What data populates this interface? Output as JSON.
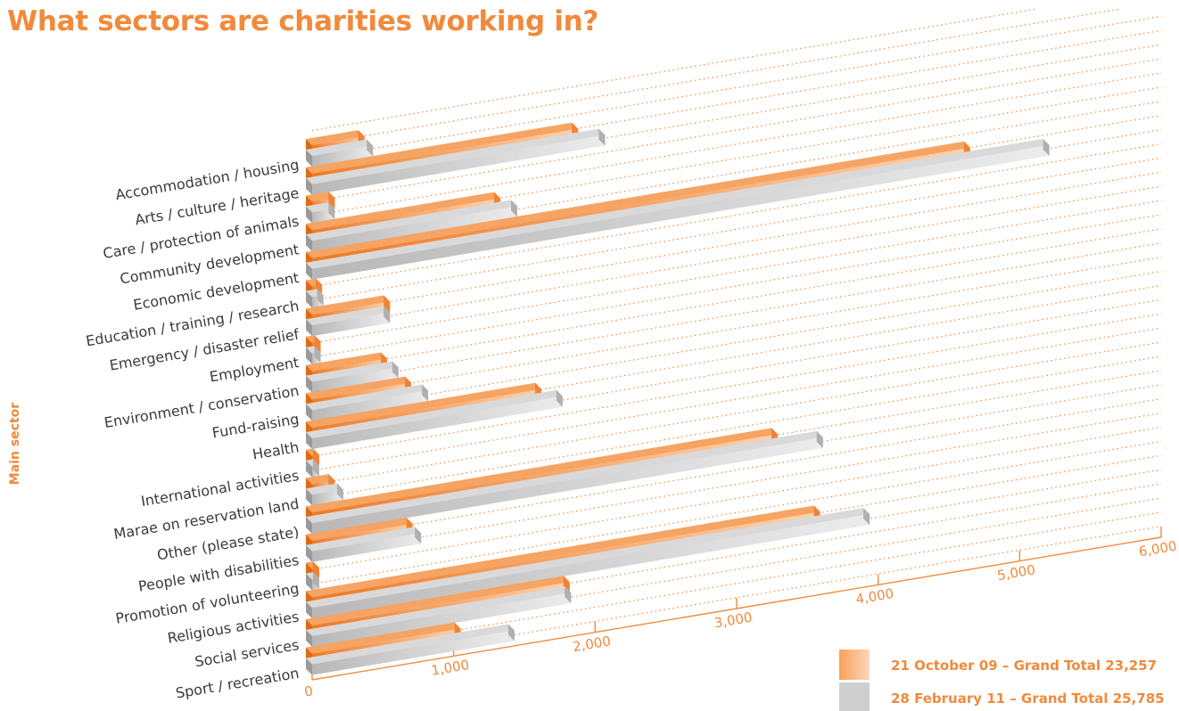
{
  "chart_data": {
    "type": "bar",
    "orientation": "horizontal",
    "title": "What sectors are charities working in?",
    "ylabel": "Main sector",
    "xlabel": "",
    "xlim": [
      0,
      6000
    ],
    "x_ticks": [
      "0",
      "1,000",
      "2,000",
      "3,000",
      "4,000",
      "5,000",
      "6,000"
    ],
    "legend_position": "bottom-right",
    "grid": "dotted",
    "categories": [
      "Accommodation / housing",
      "Arts / culture / heritage",
      "Care / protection of animals",
      "Community development",
      "Economic development",
      "Education / training / research",
      "Emergency / disaster relief",
      "Employment",
      "Environment / conservation",
      "Fund-raising",
      "Health",
      "International activities",
      "Marae on reservation land",
      "Other (please state)",
      "People with disabilities",
      "Promotion of volunteering",
      "Religious activities",
      "Social services",
      "Sport / recreation"
    ],
    "series": [
      {
        "name": "21 October 09 – Grand Total 23,257",
        "color": "#f48a36",
        "values": [
          370,
          1880,
          160,
          1330,
          4650,
          70,
          550,
          60,
          530,
          700,
          1620,
          50,
          160,
          3290,
          710,
          50,
          3590,
          1820,
          1050
        ]
      },
      {
        "name": "28 February 11 – Grand Total 25,785",
        "color": "#c8c8c8",
        "values": [
          430,
          2070,
          160,
          1450,
          5210,
          80,
          550,
          60,
          610,
          820,
          1770,
          50,
          220,
          3610,
          770,
          50,
          3940,
          1830,
          1430
        ]
      }
    ]
  }
}
